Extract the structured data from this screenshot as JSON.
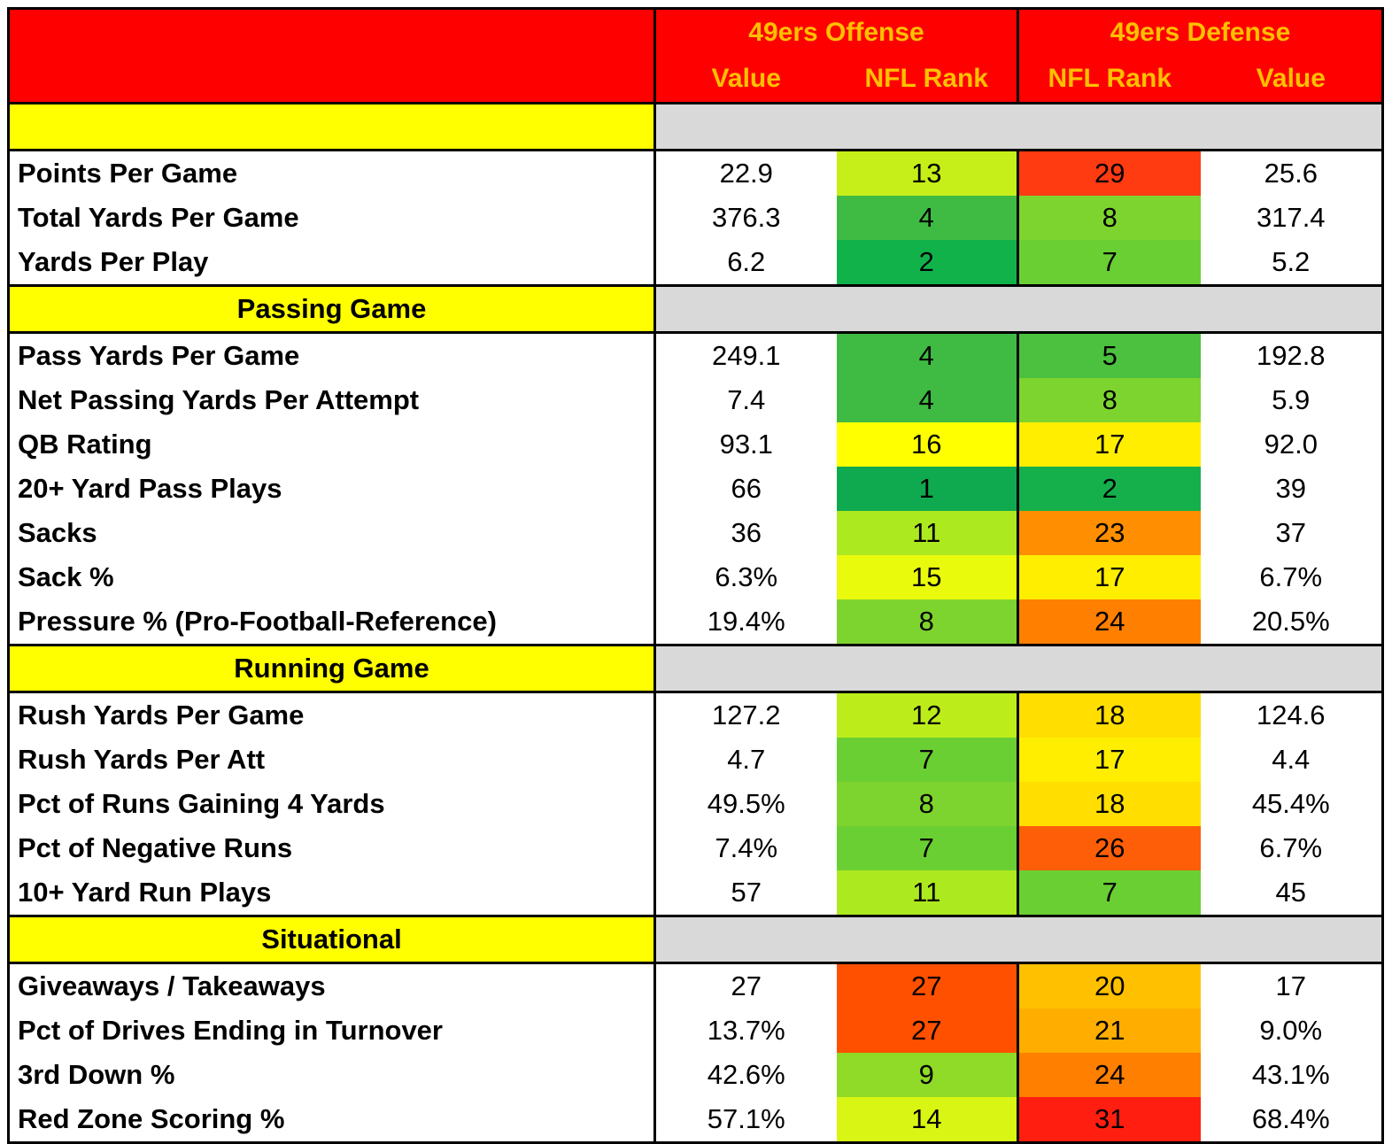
{
  "header": {
    "offense_title": "49ers Offense",
    "defense_title": "49ers Defense",
    "offense_col1": "Value",
    "offense_col2": "NFL Rank",
    "defense_col1": "NFL Rank",
    "defense_col2": "Value"
  },
  "sections": [
    {
      "title": "",
      "rows": [
        {
          "label": "Points Per Game",
          "off_value": "22.9",
          "off_rank": "13",
          "def_rank": "29",
          "def_value": "25.6",
          "off_color": "#c6ef19",
          "def_color": "#ff3b12"
        },
        {
          "label": "Total Yards Per Game",
          "off_value": "376.3",
          "off_rank": "4",
          "def_rank": "8",
          "def_value": "317.4",
          "off_color": "#3fbb44",
          "def_color": "#7ed42e"
        },
        {
          "label": "Yards Per Play",
          "off_value": "6.2",
          "off_rank": "2",
          "def_rank": "7",
          "def_value": "5.2",
          "off_color": "#12b24b",
          "def_color": "#6acf33"
        }
      ]
    },
    {
      "title": "Passing Game",
      "rows": [
        {
          "label": "Pass Yards Per Game",
          "off_value": "249.1",
          "off_rank": "4",
          "def_rank": "5",
          "def_value": "192.8",
          "off_color": "#3fbb44",
          "def_color": "#4cc03f"
        },
        {
          "label": "Net Passing Yards Per Attempt",
          "off_value": "7.4",
          "off_rank": "4",
          "def_rank": "8",
          "def_value": "5.9",
          "off_color": "#3fbb44",
          "def_color": "#7ed42e"
        },
        {
          "label": "QB Rating",
          "off_value": "93.1",
          "off_rank": "16",
          "def_rank": "17",
          "def_value": "92.0",
          "off_color": "#ffff00",
          "def_color": "#ffee00"
        },
        {
          "label": "20+ Yard Pass Plays",
          "off_value": "66",
          "off_rank": "1",
          "def_rank": "2",
          "def_value": "39",
          "off_color": "#0fa94f",
          "def_color": "#15b04c"
        },
        {
          "label": "Sacks",
          "off_value": "36",
          "off_rank": "11",
          "def_rank": "23",
          "def_value": "37",
          "off_color": "#ade91f",
          "def_color": "#ff8f00"
        },
        {
          "label": "Sack %",
          "off_value": "6.3%",
          "off_rank": "15",
          "def_rank": "17",
          "def_value": "6.7%",
          "off_color": "#eafa0c",
          "def_color": "#ffee00"
        },
        {
          "label": "Pressure % (Pro-Football-Reference)",
          "off_value": "19.4%",
          "off_rank": "8",
          "def_rank": "24",
          "def_value": "20.5%",
          "off_color": "#7ed42e",
          "def_color": "#ff7f00"
        }
      ]
    },
    {
      "title": "Running Game",
      "rows": [
        {
          "label": "Rush Yards Per Game",
          "off_value": "127.2",
          "off_rank": "12",
          "def_rank": "18",
          "def_value": "124.6",
          "off_color": "#bced1b",
          "def_color": "#ffde00"
        },
        {
          "label": "Rush Yards Per Att",
          "off_value": "4.7",
          "off_rank": "7",
          "def_rank": "17",
          "def_value": "4.4",
          "off_color": "#6acf33",
          "def_color": "#ffee00"
        },
        {
          "label": "Pct of Runs Gaining 4 Yards",
          "off_value": "49.5%",
          "off_rank": "8",
          "def_rank": "18",
          "def_value": "45.4%",
          "off_color": "#7ed42e",
          "def_color": "#ffde00"
        },
        {
          "label": "Pct of Negative Runs",
          "off_value": "7.4%",
          "off_rank": "7",
          "def_rank": "26",
          "def_value": "6.7%",
          "off_color": "#6acf33",
          "def_color": "#ff5e08"
        },
        {
          "label": "10+ Yard Run Plays",
          "off_value": "57",
          "off_rank": "11",
          "def_rank": "7",
          "def_value": "45",
          "off_color": "#ade91f",
          "def_color": "#6acf33"
        }
      ]
    },
    {
      "title": "Situational",
      "rows": [
        {
          "label": "Giveaways / Takeaways",
          "off_value": "27",
          "off_rank": "27",
          "def_rank": "20",
          "def_value": "17",
          "off_color": "#ff5000",
          "def_color": "#ffc000"
        },
        {
          "label": "Pct of Drives Ending in Turnover",
          "off_value": "13.7%",
          "off_rank": "27",
          "def_rank": "21",
          "def_value": "9.0%",
          "off_color": "#ff5000",
          "def_color": "#ffae00"
        },
        {
          "label": "3rd Down %",
          "off_value": "42.6%",
          "off_rank": "9",
          "def_rank": "24",
          "def_value": "43.1%",
          "off_color": "#8fdb28",
          "def_color": "#ff7f00"
        },
        {
          "label": "Red Zone Scoring %",
          "off_value": "57.1%",
          "off_rank": "14",
          "def_rank": "31",
          "def_value": "68.4%",
          "off_color": "#d9f514",
          "def_color": "#ff1e10"
        }
      ]
    }
  ]
}
